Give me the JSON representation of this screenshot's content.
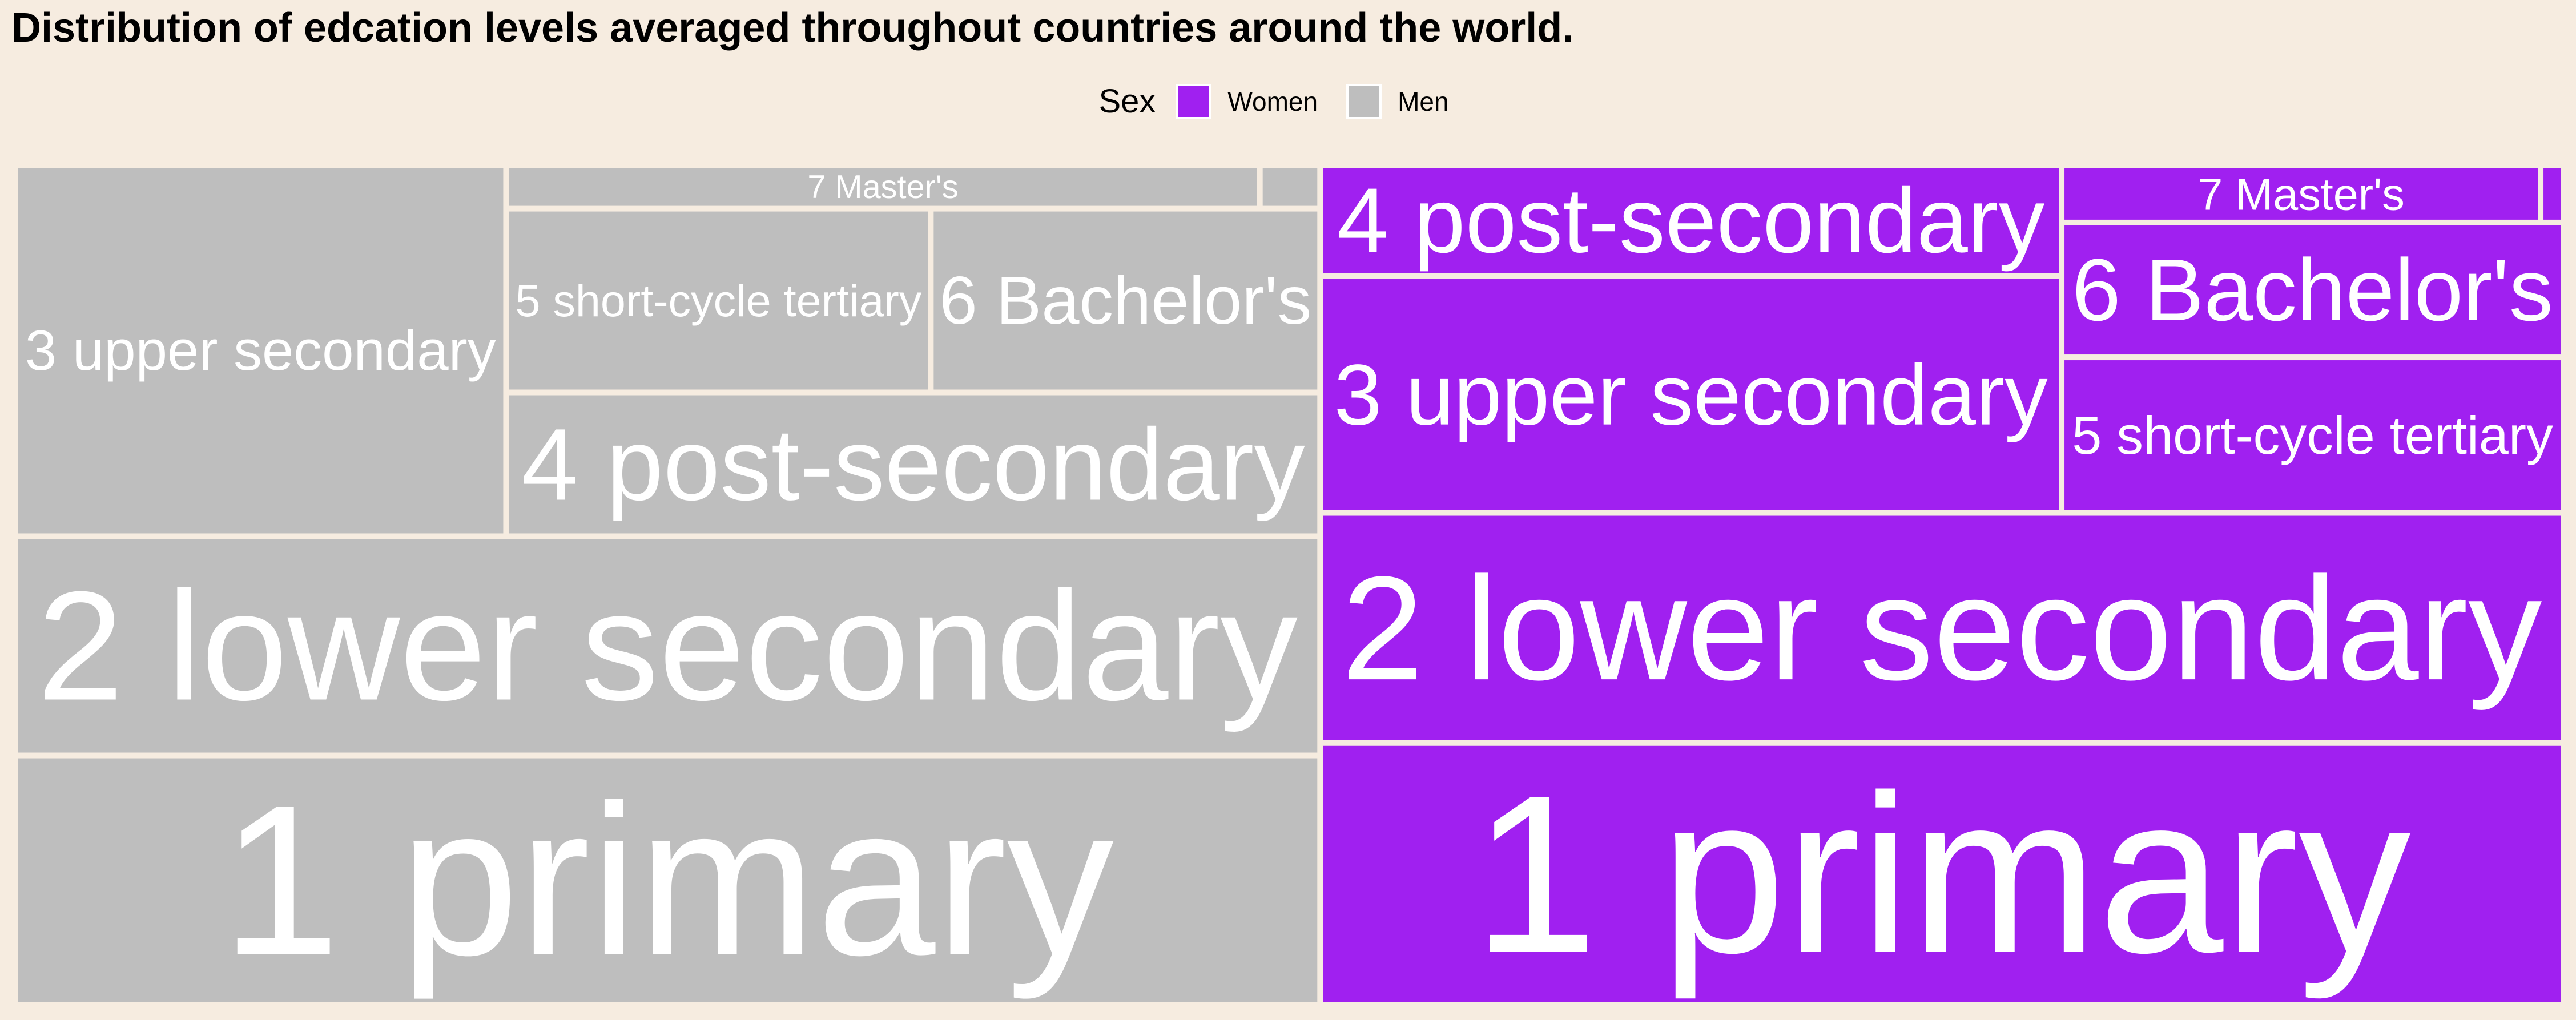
{
  "chart_data": {
    "type": "treemap",
    "title": "Distribution of edcation levels averaged throughout countries around the world.",
    "legend": {
      "title": "Sex",
      "position": "top",
      "entries": [
        {
          "label": "Women",
          "color": "#a020f0"
        },
        {
          "label": "Men",
          "color": "#bebebe"
        }
      ]
    },
    "groups": [
      {
        "name": "Men",
        "color": "#bebebe",
        "leaves": [
          {
            "label": "1 primary",
            "value": 25.0
          },
          {
            "label": "2 lower secondary",
            "value": 22.0
          },
          {
            "label": "3 upper secondary",
            "value": 14.0
          },
          {
            "label": "4 post-secondary",
            "value": 9.0
          },
          {
            "label": "5 short-cycle tertiary",
            "value": 6.0
          },
          {
            "label": "6 Bachelor's",
            "value": 5.5
          },
          {
            "label": "7 Master's",
            "value": 2.5
          },
          {
            "label": "",
            "value": 0.2
          }
        ]
      },
      {
        "name": "Women",
        "color": "#a020f0",
        "leaves": [
          {
            "label": "1 primary",
            "value": 25.0
          },
          {
            "label": "2 lower secondary",
            "value": 22.0
          },
          {
            "label": "3 upper secondary",
            "value": 13.5
          },
          {
            "label": "4 post-secondary",
            "value": 6.3
          },
          {
            "label": "5 short-cycle tertiary",
            "value": 6.0
          },
          {
            "label": "6 Bachelor's",
            "value": 5.2
          },
          {
            "label": "7 Master's",
            "value": 2.1
          },
          {
            "label": "",
            "value": 0.1
          }
        ]
      }
    ]
  }
}
